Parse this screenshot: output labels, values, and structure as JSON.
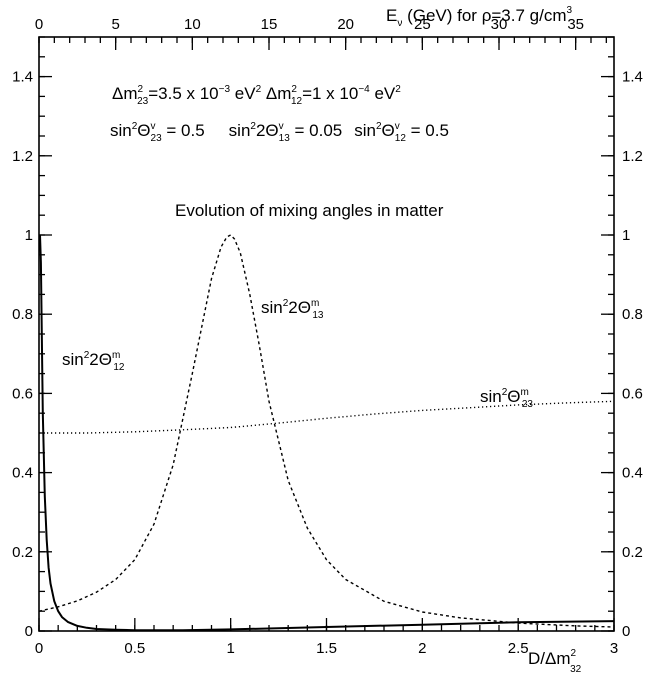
{
  "chart_data": {
    "type": "line",
    "title": "",
    "annotations": {
      "mass_line": {
        "dm23_main": "Δm",
        "dm23_sup": "2",
        "dm23_sub": "23",
        "dm23_value_a": "=3.5 x 10",
        "dm23_exp": "−3",
        "dm23_unit": " eV",
        "dm23_unit_sup": "2",
        "dm12_main": " Δm",
        "dm12_sup": "2",
        "dm12_sub": "12",
        "dm12_value_a": "=1 x 10",
        "dm12_exp": "−4",
        "dm12_unit": " eV",
        "dm12_unit_sup": "2"
      },
      "angle_line": {
        "a1_main": "sin",
        "a1_sup": "2",
        "a1_theta": "Θ",
        "a1_sub": "23",
        "a1_tsup": "v",
        "a1_val": " = 0.5",
        "a2_main": "sin",
        "a2_sup": "2",
        "a2_two_theta": "2Θ",
        "a2_sub": "13",
        "a2_tsup": "v",
        "a2_val": " = 0.05",
        "a3_main": "sin",
        "a3_sup": "2",
        "a3_theta": "Θ",
        "a3_sub": "12",
        "a3_tsup": "v",
        "a3_val": " = 0.5"
      },
      "subtitle": "Evolution of mixing angles in matter"
    },
    "x_axis": {
      "label": "D/Δm",
      "label_sup": "2",
      "label_sub": "32",
      "range": [
        0,
        3
      ],
      "ticks": [
        0,
        0.5,
        1,
        1.5,
        2,
        2.5,
        3
      ],
      "tick_labels": [
        "0",
        "0.5",
        "1",
        "1.5",
        "2",
        "2.5",
        "3"
      ]
    },
    "top_axis": {
      "label_a": "E",
      "label_sub": "ν",
      "label_b": " (GeV) for ρ=3.7 g/cm",
      "label_sup": "3",
      "range": [
        0,
        37.5
      ],
      "ticks": [
        0,
        5,
        10,
        15,
        20,
        25,
        30,
        35
      ],
      "tick_labels": [
        "0",
        "5",
        "10",
        "15",
        "20",
        "25",
        "30",
        "35"
      ]
    },
    "y_axis": {
      "range": [
        0,
        1.5
      ],
      "ticks": [
        0,
        0.2,
        0.4,
        0.6,
        0.8,
        1,
        1.2,
        1.4
      ],
      "tick_labels": [
        "0",
        "0.2",
        "0.4",
        "0.6",
        "0.8",
        "1",
        "1.2",
        "1.4"
      ]
    },
    "grid": false,
    "series": [
      {
        "name": "sin²2Θ₁₂ᵐ",
        "label_main": "sin",
        "label_sup": "2",
        "label_theta": "2Θ",
        "label_sub": "12",
        "label_tsup": "m",
        "style": "solid",
        "x": [
          0.005,
          0.01,
          0.02,
          0.03,
          0.04,
          0.05,
          0.06,
          0.08,
          0.1,
          0.12,
          0.15,
          0.2,
          0.25,
          0.3,
          0.4,
          0.5,
          0.75,
          1,
          1.5,
          2,
          2.5,
          3
        ],
        "y": [
          1.0,
          0.93,
          0.55,
          0.34,
          0.23,
          0.16,
          0.12,
          0.075,
          0.05,
          0.035,
          0.023,
          0.013,
          0.008,
          0.005,
          0.003,
          0.002,
          0.002,
          0.004,
          0.01,
          0.016,
          0.022,
          0.025
        ]
      },
      {
        "name": "sin²2Θ₁₃ᵐ",
        "label_main": "sin",
        "label_sup": "2",
        "label_theta": "2Θ",
        "label_sub": "13",
        "label_tsup": "m",
        "style": "dashed",
        "x": [
          0,
          0.1,
          0.2,
          0.3,
          0.4,
          0.5,
          0.6,
          0.7,
          0.8,
          0.85,
          0.9,
          0.95,
          0.98,
          1.0,
          1.02,
          1.05,
          1.1,
          1.15,
          1.2,
          1.3,
          1.4,
          1.5,
          1.6,
          1.8,
          2.0,
          2.2,
          2.5,
          2.8,
          3.0
        ],
        "y": [
          0.05,
          0.061,
          0.076,
          0.098,
          0.13,
          0.18,
          0.27,
          0.42,
          0.65,
          0.77,
          0.89,
          0.97,
          0.995,
          1.0,
          0.99,
          0.955,
          0.85,
          0.72,
          0.58,
          0.38,
          0.26,
          0.18,
          0.13,
          0.075,
          0.048,
          0.033,
          0.02,
          0.013,
          0.01
        ]
      },
      {
        "name": "sin²Θ₂₃ᵐ",
        "label_main": "sin",
        "label_sup": "2",
        "label_theta": "Θ",
        "label_sub": "23",
        "label_tsup": "m",
        "style": "dotted",
        "x": [
          0,
          0.25,
          0.5,
          0.75,
          1.0,
          1.25,
          1.5,
          1.75,
          2.0,
          2.25,
          2.5,
          2.75,
          3.0
        ],
        "y": [
          0.5,
          0.5,
          0.503,
          0.508,
          0.514,
          0.525,
          0.537,
          0.548,
          0.557,
          0.564,
          0.571,
          0.576,
          0.58
        ]
      }
    ],
    "colors": {
      "line": "#000000",
      "background": "#ffffff"
    }
  }
}
